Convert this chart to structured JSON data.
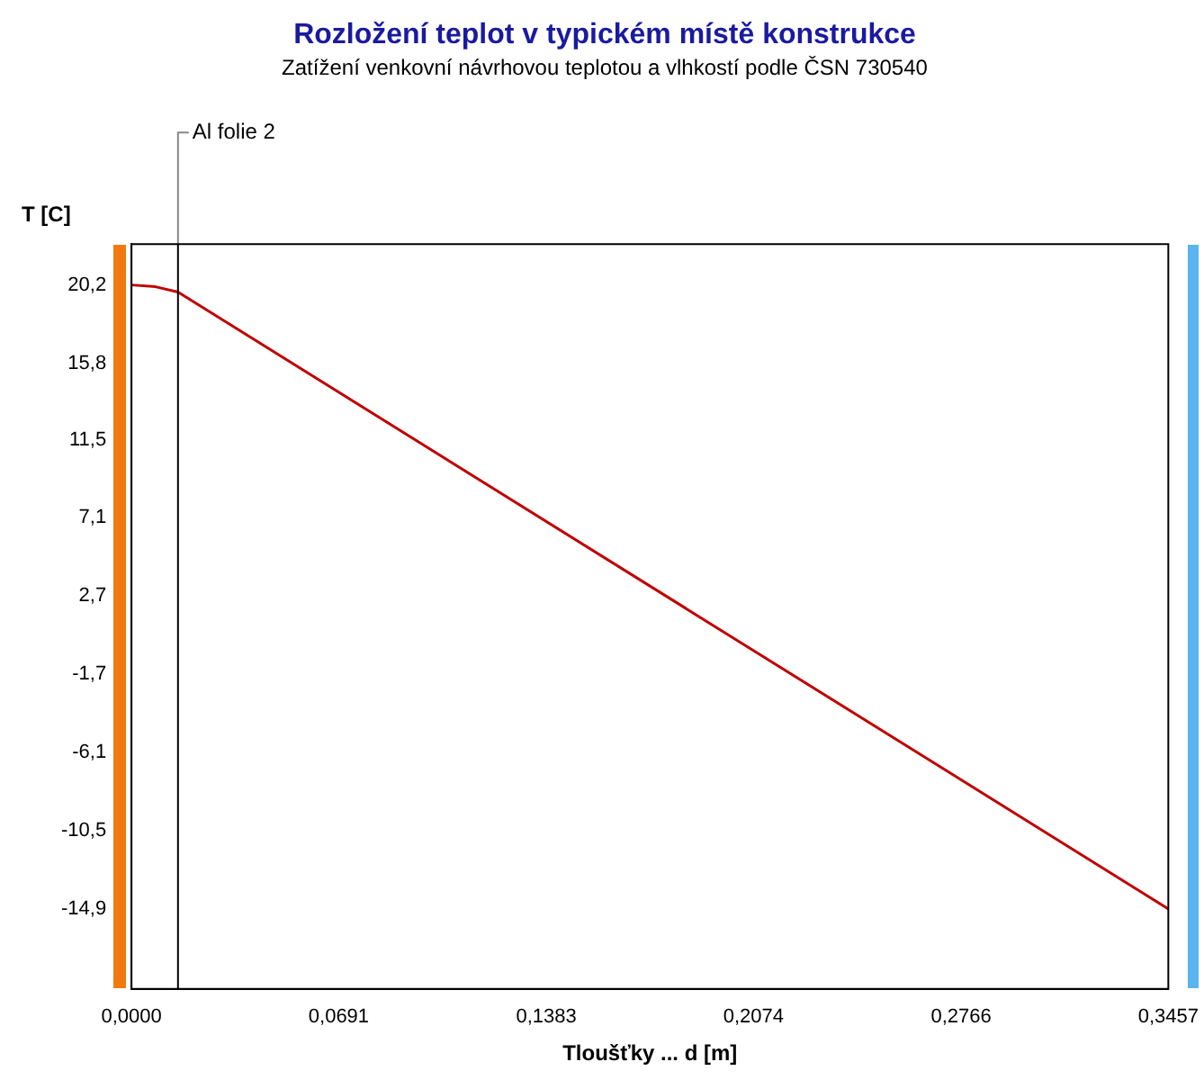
{
  "chart_data": {
    "type": "line",
    "title": "Rozložení teplot v typickém místě konstrukce",
    "subtitle": "Zatížení venkovní návrhovou teplotou a vlhkostí podle ČSN 730540",
    "xlabel": "Tloušťky ... d [m]",
    "ylabel": "T [C]",
    "x": [
      0,
      0.008,
      0.0155,
      0.3457
    ],
    "series": [
      {
        "color": "#c00000",
        "values": [
          20.2,
          20.1,
          19.8,
          -14.9
        ]
      }
    ],
    "xlim": [
      0,
      0.3457
    ],
    "xticks": [
      {
        "value": 0,
        "label": "0,0000"
      },
      {
        "value": 0.0691,
        "label": "0,0691"
      },
      {
        "value": 0.1383,
        "label": "0,1383"
      },
      {
        "value": 0.2074,
        "label": "0,2074"
      },
      {
        "value": 0.2766,
        "label": "0,2766"
      },
      {
        "value": 0.3457,
        "label": "0,3457"
      }
    ],
    "ylim": [
      -19.4,
      22.5
    ],
    "yticks": [
      {
        "value": 20.2,
        "label": "20,2"
      },
      {
        "value": 15.8,
        "label": "15,8"
      },
      {
        "value": 11.5,
        "label": "11,5"
      },
      {
        "value": 7.1,
        "label": "7,1"
      },
      {
        "value": 2.7,
        "label": "2,7"
      },
      {
        "value": -1.7,
        "label": "-1,7"
      },
      {
        "value": -6.1,
        "label": "-6,1"
      },
      {
        "value": -10.5,
        "label": "-10,5"
      },
      {
        "value": -14.9,
        "label": "-14,9"
      }
    ],
    "ref_lines": [
      {
        "axis": "x",
        "value": 0.0155,
        "label": "Al folie 2",
        "color": "#000000"
      }
    ],
    "grid": false,
    "legend": false,
    "marker": "none",
    "line_style": "solid"
  }
}
